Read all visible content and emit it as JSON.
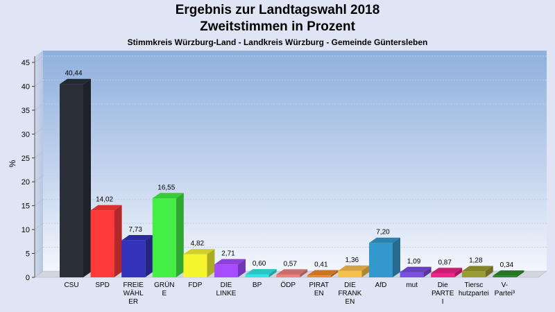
{
  "header": {
    "title_line1": "Ergebnis zur Landtagswahl 2018",
    "title_line2": "Zweitstimmen in Prozent",
    "subtitle": "Stimmkreis Würzburg-Land - Landkreis Würzburg - Gemeinde Güntersleben"
  },
  "chart_data": {
    "type": "bar",
    "title": "Ergebnis zur Landtagswahl 2018 / Zweitstimmen in Prozent",
    "subtitle": "Stimmkreis Würzburg-Land - Landkreis Würzburg - Gemeinde Güntersleben",
    "ylabel": "%",
    "ylim": [
      0,
      45
    ],
    "yticks": [
      0,
      5,
      10,
      15,
      20,
      25,
      30,
      35,
      40,
      45
    ],
    "grid": true,
    "categories": [
      [
        "CSU"
      ],
      [
        "SPD"
      ],
      [
        "FREIE",
        "WÄHL",
        "ER"
      ],
      [
        "GRÜN",
        "E"
      ],
      [
        "FDP"
      ],
      [
        "DIE",
        "LINKE"
      ],
      [
        "BP"
      ],
      [
        "ÖDP"
      ],
      [
        "PIRAT",
        "EN"
      ],
      [
        "DIE",
        "FRANK",
        "EN"
      ],
      [
        "AfD"
      ],
      [
        "mut"
      ],
      [
        "Die",
        "PARTE",
        "I"
      ],
      [
        "Tiersc",
        "hutzpartei"
      ],
      [
        "V-",
        "Partei³"
      ]
    ],
    "values": [
      40.44,
      14.02,
      7.73,
      16.55,
      4.82,
      2.71,
      0.6,
      0.57,
      0.41,
      1.36,
      7.2,
      1.09,
      0.87,
      1.28,
      0.34
    ],
    "value_labels": [
      "40,44",
      "14,02",
      "7,73",
      "16,55",
      "4,82",
      "2,71",
      "0,60",
      "0,57",
      "0,41",
      "1,36",
      "7,20",
      "1,09",
      "0,87",
      "1,28",
      "0,34"
    ],
    "colors": [
      "#2b2f38",
      "#ff3a3a",
      "#3333bb",
      "#44ee44",
      "#f5f530",
      "#a64dff",
      "#33e6e6",
      "#ee8080",
      "#ee8a2b",
      "#f7c04a",
      "#3399cc",
      "#7b4fe0",
      "#ee2288",
      "#9b9b33",
      "#2d8a2d"
    ]
  }
}
